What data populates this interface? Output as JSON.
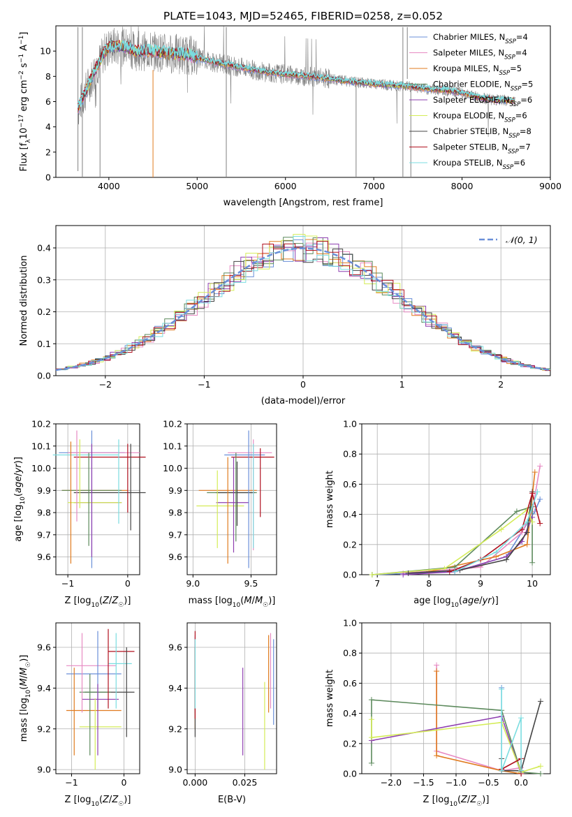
{
  "figure_title": "PLATE=1043, MJD=52465, FIBERID=0258, z=0.052",
  "colors": {
    "Chabrier MILES": "#6a8fd8",
    "Salpeter MILES": "#e78ac3",
    "Kroupa MILES": "#e07b1f",
    "Chabrier ELODIE": "#5d8a5d",
    "Salpeter ELODIE": "#8e3fb0",
    "Kroupa ELODIE": "#d4ec57",
    "Chabrier STELIB": "#444444",
    "Salpeter STELIB": "#b0101e",
    "Kroupa STELIB": "#7adde0",
    "data": "#808080",
    "normal": "#6a8fd8"
  },
  "legend_top": [
    {
      "label": "Chabrier MILES",
      "sub": "SSP",
      "n": "4"
    },
    {
      "label": "Salpeter MILES",
      "sub": "SSP",
      "n": "4"
    },
    {
      "label": "Kroupa MILES",
      "sub": "SSP",
      "n": "5"
    },
    {
      "label": "Chabrier ELODIE",
      "sub": "SSP",
      "n": "5"
    },
    {
      "label": "Salpeter ELODIE",
      "sub": "SSP",
      "n": "6"
    },
    {
      "label": "Kroupa ELODIE",
      "sub": "SSP",
      "n": "6"
    },
    {
      "label": "Chabrier STELIB",
      "sub": "SSP",
      "n": "8"
    },
    {
      "label": "Salpeter STELIB",
      "sub": "SSP",
      "n": "7"
    },
    {
      "label": "Kroupa STELIB",
      "sub": "SSP",
      "n": "6"
    }
  ],
  "legend_hist": "𝒩(0, 1)",
  "chart_data": [
    {
      "id": "spectrum",
      "type": "line",
      "xlabel": "wavelength [Angstrom, rest frame]",
      "ylabel": "Flux [f_λ10^-17 erg cm^-2 s^-1 A^-1]",
      "xlim": [
        3400,
        9000
      ],
      "ylim": [
        0,
        12
      ],
      "xticks": [
        "4000",
        "5000",
        "6000",
        "7000",
        "8000",
        "9000"
      ],
      "yticks": [
        "0",
        "2",
        "4",
        "6",
        "8",
        "10"
      ],
      "data_range": [
        3650,
        8600
      ],
      "model_curve": {
        "x": [
          3650,
          3700,
          3750,
          3800,
          3850,
          3900,
          3950,
          4000,
          4100,
          4200,
          4300,
          4500,
          4700,
          4900,
          5200,
          5500,
          5800,
          6100,
          6400,
          6700,
          7000,
          7200,
          7400,
          7600,
          7800,
          8000,
          8200,
          8400,
          8600
        ],
        "y": [
          5.4,
          6.2,
          7.0,
          7.8,
          8.6,
          9.2,
          9.9,
          10.3,
          10.4,
          10.3,
          10.0,
          10.0,
          9.8,
          9.7,
          9.1,
          8.7,
          8.3,
          8.1,
          7.9,
          7.6,
          7.4,
          7.3,
          7.2,
          7.0,
          6.9,
          6.7,
          6.3,
          6.1,
          6.1
        ]
      }
    },
    {
      "id": "histogram",
      "type": "line",
      "xlabel": "(data-model)/error",
      "ylabel": "Normed distribution",
      "xlim": [
        -2.5,
        2.5
      ],
      "ylim": [
        0,
        0.47
      ],
      "xticks": [
        "−2",
        "−1",
        "0",
        "1",
        "2"
      ],
      "yticks": [
        "0.0",
        "0.1",
        "0.2",
        "0.3",
        "0.4"
      ],
      "series": [
        {
          "name": "𝒩(0, 1)",
          "mean": 0,
          "sigma": 1
        }
      ],
      "grid": true
    },
    {
      "id": "z-age",
      "type": "scatter",
      "xlabel": "Z [log10(Z/Z☉)]",
      "ylabel": "age [log10(age/yr)]",
      "xlim": [
        -1.2,
        0.2
      ],
      "ylim": [
        9.52,
        10.2
      ],
      "xticks": [
        "−1",
        "0"
      ],
      "yticks": [
        "9.6",
        "9.7",
        "9.8",
        "9.9",
        "10.0",
        "10.1",
        "10.2"
      ],
      "points": [
        {
          "name": "Chabrier MILES",
          "x": -0.6,
          "xerr": 0.55,
          "y": 10.07,
          "yerr": 0.0
        },
        {
          "name": "Salpeter MILES",
          "x": -0.4,
          "xerr": 0.6,
          "y": 10.07,
          "yerr": 0.0
        },
        {
          "name": "Kroupa MILES",
          "x": -0.55,
          "xerr": 0.55,
          "y": 9.9,
          "yerr": 0.0
        },
        {
          "name": "Chabrier ELODIE",
          "x": -0.6,
          "xerr": 0.5,
          "y": 9.9,
          "yerr": 0.0
        },
        {
          "name": "Salpeter ELODIE",
          "x": -0.5,
          "xerr": 0.4,
          "y": 9.845,
          "yerr": 0.0
        },
        {
          "name": "Kroupa ELODIE",
          "x": -0.55,
          "xerr": 0.45,
          "y": 9.845,
          "yerr": 0.0
        },
        {
          "name": "Chabrier STELIB",
          "x": -0.3,
          "xerr": 0.6,
          "y": 9.89,
          "yerr": 0.0
        },
        {
          "name": "Salpeter STELIB",
          "x": -0.3,
          "xerr": 0.6,
          "y": 10.05,
          "yerr": 0.0
        },
        {
          "name": "Kroupa STELIB",
          "x": -0.7,
          "xerr": 0.55,
          "y": 10.06,
          "yerr": 0.0
        }
      ],
      "vbars": [
        {
          "name": "Kroupa MILES",
          "x": -0.95,
          "y0": 9.57,
          "y1": 10.12
        },
        {
          "name": "Salpeter MILES",
          "x": -0.85,
          "y0": 9.76,
          "y1": 10.17
        },
        {
          "name": "Kroupa ELODIE",
          "x": -0.8,
          "y0": 9.82,
          "y1": 10.13
        },
        {
          "name": "Chabrier ELODIE",
          "x": -0.65,
          "y0": 9.65,
          "y1": 10.07
        },
        {
          "name": "Chabrier MILES",
          "x": -0.6,
          "y0": 9.55,
          "y1": 10.17
        },
        {
          "name": "Salpeter ELODIE",
          "x": -0.6,
          "y0": 9.6,
          "y1": 10.11
        },
        {
          "name": "Kroupa STELIB",
          "x": -0.15,
          "y0": 9.75,
          "y1": 10.13
        },
        {
          "name": "Salpeter STELIB",
          "x": 0.0,
          "y0": 9.8,
          "y1": 10.11
        },
        {
          "name": "Chabrier STELIB",
          "x": 0.05,
          "y0": 9.72,
          "y1": 10.11
        }
      ]
    },
    {
      "id": "mass-age",
      "type": "scatter",
      "xlabel": "mass [log10(M/M☉)]",
      "ylabel": "",
      "xlim": [
        8.95,
        9.72
      ],
      "ylim": [
        9.52,
        10.2
      ],
      "xticks": [
        "9.0",
        "9.5"
      ],
      "yticks": [
        "9.6",
        "9.7",
        "9.8",
        "9.9",
        "10.0",
        "10.1",
        "10.2"
      ],
      "vbars": [
        {
          "name": "Kroupa MILES",
          "x": 9.3,
          "y0": 9.57,
          "y1": 10.05
        },
        {
          "name": "Kroupa ELODIE",
          "x": 9.21,
          "y0": 9.64,
          "y1": 9.99
        },
        {
          "name": "Chabrier ELODIE",
          "x": 9.37,
          "y0": 9.67,
          "y1": 10.07
        },
        {
          "name": "Salpeter ELODIE",
          "x": 9.35,
          "y0": 9.62,
          "y1": 10.05
        },
        {
          "name": "Chabrier STELIB",
          "x": 9.38,
          "y0": 9.74,
          "y1": 10.03
        },
        {
          "name": "Chabrier MILES",
          "x": 9.48,
          "y0": 9.55,
          "y1": 10.17
        },
        {
          "name": "Salpeter MILES",
          "x": 9.52,
          "y0": 9.63,
          "y1": 10.13
        },
        {
          "name": "Kroupa STELIB",
          "x": 9.52,
          "y0": 9.64,
          "y1": 10.11
        },
        {
          "name": "Salpeter STELIB",
          "x": 9.58,
          "y0": 9.78,
          "y1": 10.09
        }
      ],
      "hbars": [
        {
          "name": "Kroupa MILES",
          "y": 9.9,
          "x0": 9.05,
          "x1": 9.55
        },
        {
          "name": "Salpeter MILES",
          "y": 10.07,
          "x0": 9.3,
          "x1": 9.68
        },
        {
          "name": "Chabrier MILES",
          "y": 10.06,
          "x0": 9.27,
          "x1": 9.62
        },
        {
          "name": "Salpeter STELIB",
          "y": 10.05,
          "x0": 9.33,
          "x1": 9.7
        },
        {
          "name": "Chabrier ELODIE",
          "y": 9.89,
          "x0": 9.12,
          "x1": 9.55
        },
        {
          "name": "Chabrier STELIB",
          "y": 9.89,
          "x0": 9.2,
          "x1": 9.53
        },
        {
          "name": "Salpeter ELODIE",
          "y": 9.845,
          "x0": 9.2,
          "x1": 9.48
        },
        {
          "name": "Kroupa ELODIE",
          "y": 9.83,
          "x0": 9.03,
          "x1": 9.44
        }
      ]
    },
    {
      "id": "mass-weight-age",
      "type": "line",
      "xlabel": "age [log10(age/yr)]",
      "ylabel": "mass weight",
      "xlim": [
        6.7,
        10.35
      ],
      "ylim": [
        0,
        1
      ],
      "xticks": [
        "7",
        "8",
        "9",
        "10"
      ],
      "yticks": [
        "0.0",
        "0.2",
        "0.4",
        "0.6",
        "0.8",
        "1.0"
      ],
      "series": [
        {
          "name": "Chabrier MILES",
          "x": [
            6.9,
            8.5,
            9.5,
            10.05,
            10.15
          ],
          "y": [
            0.0,
            0.02,
            0.12,
            0.42,
            0.5
          ]
        },
        {
          "name": "Salpeter MILES",
          "x": [
            7.5,
            9.0,
            9.8,
            10.0,
            10.15
          ],
          "y": [
            0.01,
            0.05,
            0.28,
            0.42,
            0.72
          ]
        },
        {
          "name": "Kroupa MILES",
          "x": [
            8.0,
            9.3,
            9.9,
            10.05
          ],
          "y": [
            0.02,
            0.12,
            0.2,
            0.68
          ]
        },
        {
          "name": "Chabrier ELODIE",
          "x": [
            6.9,
            8.5,
            9.7,
            10.0,
            10.0
          ],
          "y": [
            0.0,
            0.05,
            0.42,
            0.45,
            0.08
          ]
        },
        {
          "name": "Salpeter ELODIE",
          "x": [
            7.5,
            8.5,
            9.5,
            9.8,
            10.0
          ],
          "y": [
            0.0,
            0.02,
            0.12,
            0.22,
            0.38
          ]
        },
        {
          "name": "Kroupa ELODIE",
          "x": [
            6.9,
            8.3,
            9.4,
            9.9,
            10.0
          ],
          "y": [
            0.0,
            0.04,
            0.3,
            0.43,
            0.35
          ]
        },
        {
          "name": "Chabrier STELIB",
          "x": [
            7.6,
            8.6,
            9.5,
            9.9,
            10.0
          ],
          "y": [
            0.01,
            0.03,
            0.1,
            0.28,
            0.55
          ]
        },
        {
          "name": "Salpeter STELIB",
          "x": [
            8.4,
            9.0,
            9.8,
            10.0,
            10.15
          ],
          "y": [
            0.02,
            0.1,
            0.3,
            0.54,
            0.34
          ]
        },
        {
          "name": "Kroupa STELIB",
          "x": [
            8.5,
            9.3,
            9.9,
            10.1
          ],
          "y": [
            0.02,
            0.15,
            0.35,
            0.55
          ]
        }
      ]
    },
    {
      "id": "z-mass",
      "type": "scatter",
      "xlabel": "Z [log10(Z/Z☉)]",
      "ylabel": "mass [log10(M/M☉)]",
      "xlim": [
        -1.3,
        0.3
      ],
      "ylim": [
        8.98,
        9.72
      ],
      "xticks": [
        "−1",
        "0"
      ],
      "yticks": [
        "9.0",
        "9.2",
        "9.4",
        "9.6"
      ],
      "hbars": [
        {
          "name": "Salpeter MILES",
          "y": 9.51,
          "x0": -1.1,
          "x1": -0.15
        },
        {
          "name": "Kroupa STELIB",
          "y": 9.52,
          "x0": -0.3,
          "x1": 0.15
        },
        {
          "name": "Chabrier MILES",
          "y": 9.47,
          "x0": -1.1,
          "x1": -0.05
        },
        {
          "name": "Chabrier STELIB",
          "y": 9.38,
          "x0": -0.75,
          "x1": 0.2
        },
        {
          "name": "Chabrier ELODIE",
          "y": 9.38,
          "x0": -0.85,
          "x1": -0.25
        },
        {
          "name": "Salpeter ELODIE",
          "y": 9.345,
          "x0": -0.8,
          "x1": -0.1
        },
        {
          "name": "Kroupa MILES",
          "y": 9.29,
          "x0": -1.1,
          "x1": -0.05
        },
        {
          "name": "Kroupa ELODIE",
          "y": 9.21,
          "x0": -0.85,
          "x1": -0.05
        },
        {
          "name": "Salpeter STELIB",
          "y": 9.58,
          "x0": -0.3,
          "x1": 0.2
        }
      ],
      "vbars": [
        {
          "name": "Kroupa MILES",
          "x": -0.95,
          "y0": 9.07,
          "y1": 9.5
        },
        {
          "name": "Salpeter MILES",
          "x": -0.8,
          "y0": 9.28,
          "y1": 9.67
        },
        {
          "name": "Chabrier ELODIE",
          "x": -0.65,
          "y0": 9.07,
          "y1": 9.47
        },
        {
          "name": "Kroupa ELODIE",
          "x": -0.55,
          "y0": 9.0,
          "y1": 9.35
        },
        {
          "name": "Chabrier MILES",
          "x": -0.5,
          "y0": 9.3,
          "y1": 9.68
        },
        {
          "name": "Salpeter ELODIE",
          "x": -0.5,
          "y0": 9.07,
          "y1": 9.42
        },
        {
          "name": "Salpeter STELIB",
          "x": -0.3,
          "y0": 9.3,
          "y1": 9.69
        },
        {
          "name": "Kroupa STELIB",
          "x": -0.15,
          "y0": 9.3,
          "y1": 9.67
        },
        {
          "name": "Chabrier STELIB",
          "x": 0.05,
          "y0": 9.16,
          "y1": 9.6
        }
      ]
    },
    {
      "id": "ebv-mass",
      "type": "scatter",
      "xlabel": "E(B-V)",
      "ylabel": "",
      "xlim": [
        -0.004,
        0.041
      ],
      "ylim": [
        8.98,
        9.72
      ],
      "xticks": [
        "0.000",
        "0.025"
      ],
      "yticks": [
        "9.0",
        "9.2",
        "9.4",
        "9.6"
      ],
      "vbars": [
        {
          "name": "Chabrier MILES",
          "x": 0.0,
          "y0": 9.3,
          "y1": 9.65
        },
        {
          "name": "Salpeter MILES",
          "x": 0.0,
          "y0": 9.28,
          "y1": 9.66
        },
        {
          "name": "Kroupa MILES",
          "x": 0.0,
          "y0": 9.2,
          "y1": 9.6
        },
        {
          "name": "Chabrier STELIB",
          "x": 0.0,
          "y0": 9.16,
          "y1": 9.6
        },
        {
          "name": "Salpeter STELIB",
          "x": 0.0,
          "y0": 9.25,
          "y1": 9.68
        },
        {
          "name": "Kroupa STELIB",
          "x": 0.0,
          "y0": 9.3,
          "y1": 9.64
        },
        {
          "name": "Salpeter ELODIE",
          "x": 0.024,
          "y0": 9.07,
          "y1": 9.5
        },
        {
          "name": "Kroupa ELODIE",
          "x": 0.035,
          "y0": 9.0,
          "y1": 9.43
        },
        {
          "name": "Kroupa MILES",
          "x": 0.037,
          "y0": 9.28,
          "y1": 9.66
        },
        {
          "name": "Salpeter MILES",
          "x": 0.038,
          "y0": 9.3,
          "y1": 9.67
        },
        {
          "name": "Chabrier MILES",
          "x": 0.0395,
          "y0": 9.22,
          "y1": 9.64
        }
      ]
    },
    {
      "id": "mass-weight-z",
      "type": "line",
      "xlabel": "Z [log10(Z/Z☉)]",
      "ylabel": "mass weight",
      "xlim": [
        -2.45,
        0.45
      ],
      "ylim": [
        0,
        1
      ],
      "xticks": [
        "−2.0",
        "−1.5",
        "−1.0",
        "−0.5",
        "0.0"
      ],
      "yticks": [
        "0.0",
        "0.2",
        "0.4",
        "0.6",
        "0.8",
        "1.0"
      ],
      "series": [
        {
          "name": "Chabrier MILES",
          "x": [
            -0.3,
            -0.3,
            -0.3,
            0.0
          ],
          "y": [
            0.03,
            0.57,
            0.02,
            0.02
          ]
        },
        {
          "name": "Salpeter MILES",
          "x": [
            -1.3,
            -1.3,
            -0.3,
            0.0
          ],
          "y": [
            0.72,
            0.15,
            0.02,
            0.04
          ]
        },
        {
          "name": "Kroupa MILES",
          "x": [
            -1.3,
            -1.3,
            -0.3,
            0.0
          ],
          "y": [
            0.68,
            0.12,
            0.02,
            0.0
          ]
        },
        {
          "name": "Chabrier ELODIE",
          "x": [
            -2.3,
            -2.3,
            -0.3,
            0.0,
            0.3
          ],
          "y": [
            0.07,
            0.49,
            0.42,
            0.01,
            0.0
          ]
        },
        {
          "name": "Salpeter ELODIE",
          "x": [
            -2.3,
            -0.3,
            0.0
          ],
          "y": [
            0.22,
            0.38,
            0.0
          ]
        },
        {
          "name": "Kroupa ELODIE",
          "x": [
            -2.3,
            -2.3,
            -0.3,
            0.0,
            0.3
          ],
          "y": [
            0.36,
            0.24,
            0.34,
            0.01,
            0.05
          ]
        },
        {
          "name": "Chabrier STELIB",
          "x": [
            -0.3,
            -0.3,
            0.0,
            0.3
          ],
          "y": [
            0.1,
            0.02,
            0.02,
            0.48
          ]
        },
        {
          "name": "Salpeter STELIB",
          "x": [
            -0.3,
            0.0,
            0.0
          ],
          "y": [
            0.03,
            0.1,
            0.0
          ]
        },
        {
          "name": "Kroupa STELIB",
          "x": [
            -0.3,
            -0.3,
            0.0,
            0.0
          ],
          "y": [
            0.56,
            0.02,
            0.37,
            0.02
          ]
        }
      ]
    }
  ]
}
